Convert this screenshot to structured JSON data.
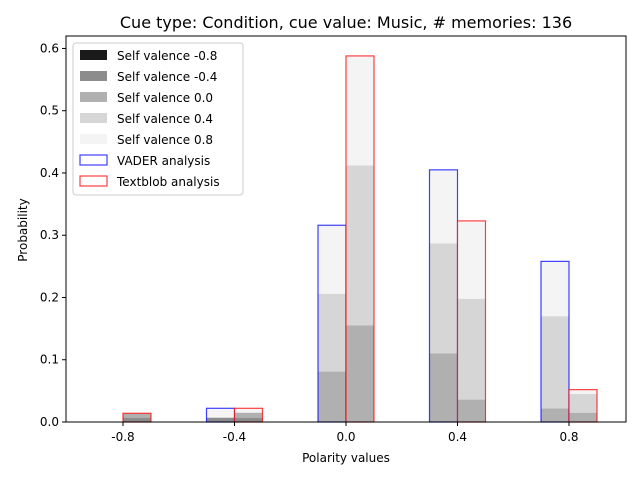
{
  "chart_data": {
    "type": "bar",
    "title": "Cue type: Condition, cue value: Music, # memories: 136",
    "xlabel": "Polarity values",
    "ylabel": "Probability",
    "categories": [
      "-0.8",
      "-0.4",
      "0.0",
      "0.4",
      "0.8"
    ],
    "ylim": [
      0,
      0.62
    ],
    "yticks": [
      "0.0",
      "0.1",
      "0.2",
      "0.3",
      "0.4",
      "0.5",
      "0.6"
    ],
    "stacked": true,
    "grid": false,
    "legend_position": "top-left",
    "groups": [
      {
        "name": "VADER analysis",
        "edge_color": "#0000ff",
        "offset": "left",
        "stacks": [
          {
            "name": "Self valence -0.8",
            "color": "#1a1a1a",
            "values": [
              0,
              0,
              0,
              0,
              0
            ]
          },
          {
            "name": "Self valence -0.4",
            "color": "#8c8c8c",
            "values": [
              0,
              0.007,
              0,
              0,
              0
            ]
          },
          {
            "name": "Self valence 0.0",
            "color": "#b0b0b0",
            "values": [
              0,
              0,
              0.081,
              0.11,
              0.022
            ]
          },
          {
            "name": "Self valence 0.4",
            "color": "#d6d6d6",
            "values": [
              0,
              0,
              0.125,
              0.177,
              0.148
            ]
          },
          {
            "name": "Self valence 0.8",
            "color": "#f4f4f4",
            "values": [
              0,
              0.015,
              0.11,
              0.118,
              0.088
            ]
          }
        ]
      },
      {
        "name": "Textblob analysis",
        "edge_color": "#ff0000",
        "offset": "right",
        "stacks": [
          {
            "name": "Self valence -0.8",
            "color": "#1a1a1a",
            "values": [
              0,
              0,
              0,
              0,
              0
            ]
          },
          {
            "name": "Self valence -0.4",
            "color": "#8c8c8c",
            "values": [
              0.007,
              0.007,
              0,
              0,
              0
            ]
          },
          {
            "name": "Self valence 0.0",
            "color": "#b0b0b0",
            "values": [
              0.007,
              0.008,
              0.155,
              0.036,
              0.015
            ]
          },
          {
            "name": "Self valence 0.4",
            "color": "#d6d6d6",
            "values": [
              0,
              0,
              0.257,
              0.162,
              0.03
            ]
          },
          {
            "name": "Self valence 0.8",
            "color": "#f4f4f4",
            "values": [
              0,
              0.007,
              0.176,
              0.125,
              0.007
            ]
          }
        ]
      }
    ],
    "legend": [
      {
        "label": "Self valence -0.8",
        "kind": "fill",
        "color": "#1a1a1a"
      },
      {
        "label": "Self valence -0.4",
        "kind": "fill",
        "color": "#8c8c8c"
      },
      {
        "label": "Self valence 0.0",
        "kind": "fill",
        "color": "#b0b0b0"
      },
      {
        "label": "Self valence 0.4",
        "kind": "fill",
        "color": "#d6d6d6"
      },
      {
        "label": "Self valence 0.8",
        "kind": "fill",
        "color": "#f4f4f4"
      },
      {
        "label": "VADER analysis",
        "kind": "edge",
        "color": "#0000ff"
      },
      {
        "label": "Textblob analysis",
        "kind": "edge",
        "color": "#ff0000"
      }
    ]
  }
}
